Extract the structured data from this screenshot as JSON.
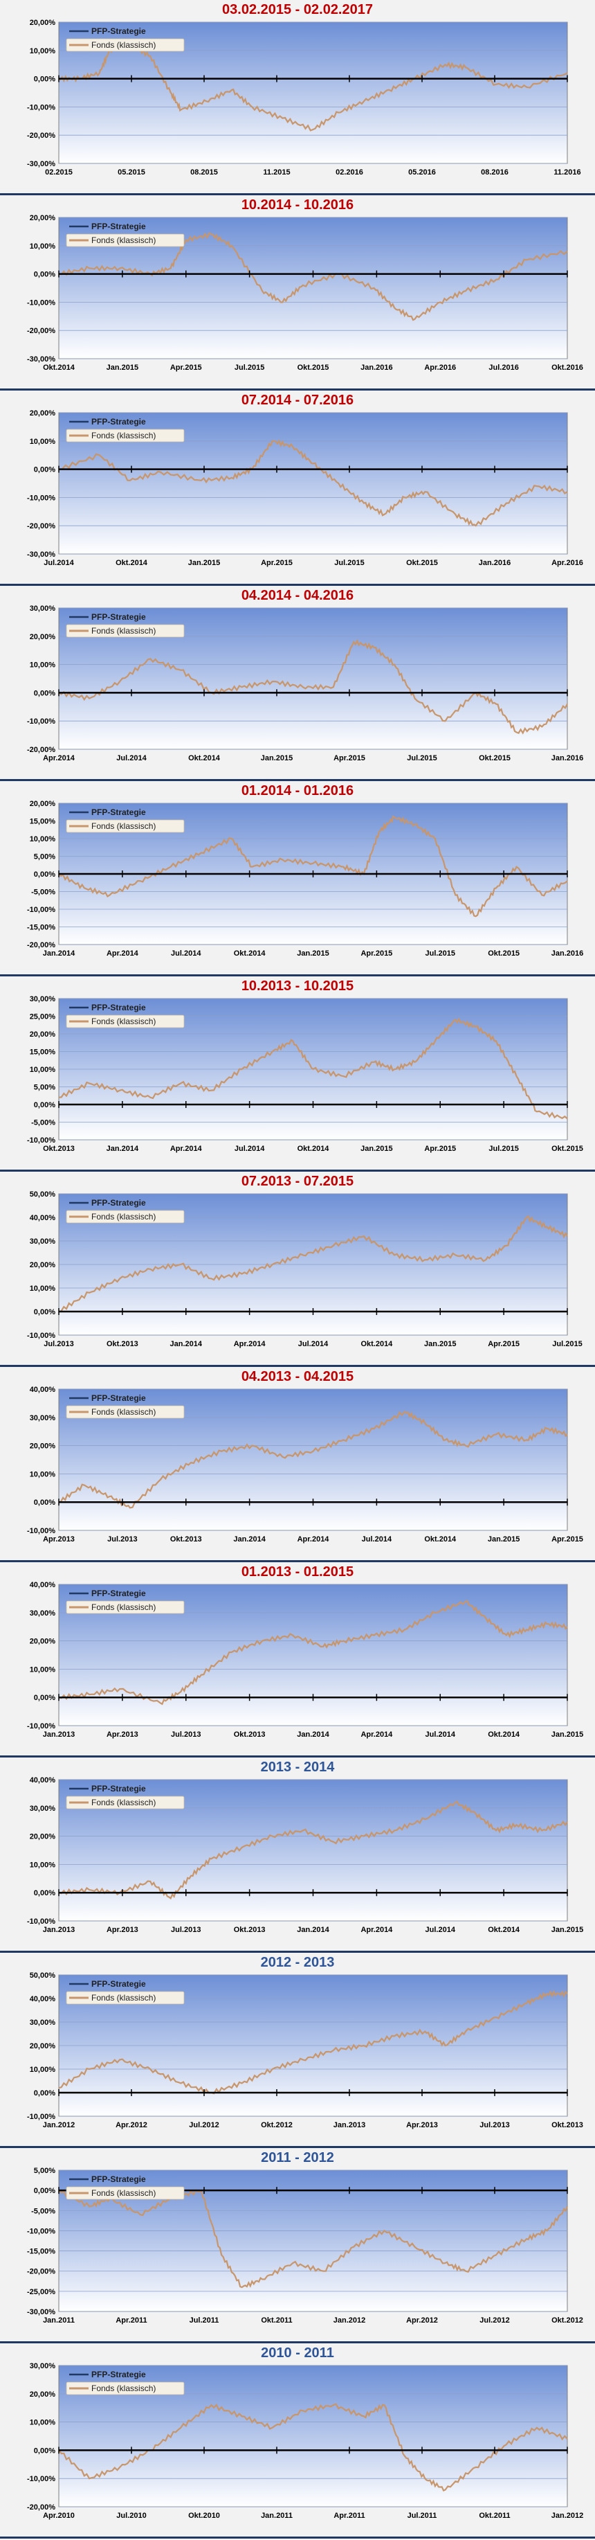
{
  "colors": {
    "plot_top": "#6d8fd6",
    "plot_bottom": "#ffffff",
    "fund": "#c8966a",
    "strategy": "#1f3864",
    "title_red": "#c00000",
    "title_blue": "#2e5597",
    "axis": "#000000",
    "grid": "#8aa0cc"
  },
  "legend": {
    "strategy": "PFP-Strategie",
    "fund": "Fonds (klassisch)"
  },
  "chart_data": [
    {
      "type": "line",
      "title": "03.02.2015 - 02.02.2017",
      "title_color": "red",
      "yticks": [
        "20,00%",
        "10,00%",
        "0,00%",
        "-10,00%",
        "-20,00%",
        "-30,00%"
      ],
      "ylim": [
        -30,
        20
      ],
      "xticks": [
        "02.2015",
        "05.2015",
        "08.2015",
        "11.2015",
        "02.2016",
        "05.2016",
        "08.2016",
        "11.2016"
      ],
      "series": [
        {
          "name": "Fonds (klassisch)",
          "x": [
            0,
            4,
            8,
            10,
            14,
            18,
            22,
            24,
            29,
            34,
            38,
            44,
            50,
            55,
            60,
            65,
            70,
            76,
            80,
            86,
            92,
            100
          ],
          "values": [
            0,
            0,
            2,
            10,
            12,
            8,
            -5,
            -11,
            -8,
            -4,
            -10,
            -14,
            -18,
            -12,
            -8,
            -4,
            0,
            5,
            4,
            -2,
            -3,
            2
          ]
        },
        {
          "name": "PFP-Strategie",
          "x": [
            0,
            100
          ],
          "values": [
            0,
            0
          ]
        }
      ]
    },
    {
      "type": "line",
      "title": "10.2014 - 10.2016",
      "title_color": "red",
      "yticks": [
        "20,00%",
        "10,00%",
        "0,00%",
        "-10,00%",
        "-20,00%",
        "-30,00%"
      ],
      "ylim": [
        -30,
        20
      ],
      "xticks": [
        "Okt.2014",
        "Jan.2015",
        "Apr.2015",
        "Jul.2015",
        "Okt.2015",
        "Jan.2016",
        "Apr.2016",
        "Jul.2016",
        "Okt.2016"
      ],
      "series": [
        {
          "name": "Fonds (klassisch)",
          "x": [
            0,
            6,
            12,
            18,
            22,
            25,
            30,
            34,
            40,
            44,
            48,
            55,
            62,
            66,
            70,
            75,
            80,
            86,
            92,
            100
          ],
          "values": [
            0,
            2,
            2,
            0,
            2,
            12,
            14,
            10,
            -6,
            -10,
            -4,
            0,
            -5,
            -12,
            -16,
            -10,
            -6,
            -2,
            5,
            8
          ]
        },
        {
          "name": "PFP-Strategie",
          "x": [
            0,
            100
          ],
          "values": [
            0,
            0
          ]
        }
      ]
    },
    {
      "type": "line",
      "title": "07.2014 - 07.2016",
      "title_color": "red",
      "yticks": [
        "20,00%",
        "10,00%",
        "0,00%",
        "-10,00%",
        "-20,00%",
        "-30,00%"
      ],
      "ylim": [
        -30,
        20
      ],
      "xticks": [
        "Jul.2014",
        "Okt.2014",
        "Jan.2015",
        "Apr.2015",
        "Jul.2015",
        "Okt.2015",
        "Jan.2016",
        "Apr.2016"
      ],
      "series": [
        {
          "name": "Fonds (klassisch)",
          "x": [
            0,
            8,
            14,
            20,
            28,
            34,
            38,
            42,
            46,
            50,
            55,
            60,
            64,
            68,
            72,
            78,
            82,
            88,
            94,
            100
          ],
          "values": [
            0,
            5,
            -4,
            -1,
            -4,
            -3,
            0,
            10,
            8,
            2,
            -5,
            -12,
            -16,
            -10,
            -8,
            -16,
            -20,
            -12,
            -6,
            -8
          ]
        },
        {
          "name": "PFP-Strategie",
          "x": [
            0,
            100
          ],
          "values": [
            0,
            0
          ]
        }
      ]
    },
    {
      "type": "line",
      "title": "04.2014 - 04.2016",
      "title_color": "red",
      "yticks": [
        "30,00%",
        "20,00%",
        "10,00%",
        "0,00%",
        "-10,00%",
        "-20,00%"
      ],
      "ylim": [
        -20,
        30
      ],
      "xticks": [
        "Apr.2014",
        "Jul.2014",
        "Okt.2014",
        "Jan.2015",
        "Apr.2015",
        "Jul.2015",
        "Okt.2015",
        "Jan.2016"
      ],
      "series": [
        {
          "name": "Fonds (klassisch)",
          "x": [
            0,
            6,
            12,
            18,
            24,
            30,
            36,
            42,
            48,
            54,
            58,
            62,
            66,
            70,
            76,
            82,
            86,
            90,
            95,
            100
          ],
          "values": [
            0,
            -2,
            4,
            12,
            8,
            0,
            2,
            4,
            2,
            2,
            18,
            16,
            10,
            -2,
            -10,
            0,
            -4,
            -14,
            -12,
            -4
          ]
        },
        {
          "name": "PFP-Strategie",
          "x": [
            0,
            100
          ],
          "values": [
            0,
            0
          ]
        }
      ]
    },
    {
      "type": "line",
      "title": "01.2014 - 01.2016",
      "title_color": "red",
      "yticks": [
        "20,00%",
        "15,00%",
        "10,00%",
        "5,00%",
        "0,00%",
        "-5,00%",
        "-10,00%",
        "-15,00%",
        "-20,00%"
      ],
      "ylim": [
        -20,
        20
      ],
      "xticks": [
        "Jan.2014",
        "Apr.2014",
        "Jul.2014",
        "Okt.2014",
        "Jan.2015",
        "Apr.2015",
        "Jul.2015",
        "Okt.2015",
        "Jan.2016"
      ],
      "series": [
        {
          "name": "Fonds (klassisch)",
          "x": [
            0,
            5,
            10,
            16,
            22,
            28,
            34,
            38,
            44,
            50,
            56,
            60,
            63,
            66,
            70,
            74,
            78,
            82,
            86,
            90,
            95,
            100
          ],
          "values": [
            0,
            -4,
            -6,
            -2,
            2,
            6,
            10,
            2,
            4,
            3,
            2,
            0,
            12,
            16,
            14,
            10,
            -6,
            -12,
            -4,
            2,
            -6,
            -2
          ]
        },
        {
          "name": "PFP-Strategie",
          "x": [
            0,
            100
          ],
          "values": [
            0,
            0
          ]
        }
      ]
    },
    {
      "type": "line",
      "title": "10.2013 - 10.2015",
      "title_color": "red",
      "yticks": [
        "30,00%",
        "25,00%",
        "20,00%",
        "15,00%",
        "10,00%",
        "5,00%",
        "0,00%",
        "-5,00%",
        "-10,00%"
      ],
      "ylim": [
        -10,
        30
      ],
      "xticks": [
        "Okt.2013",
        "Jan.2014",
        "Apr.2014",
        "Jul.2014",
        "Okt.2014",
        "Jan.2015",
        "Apr.2015",
        "Jul.2015",
        "Okt.2015"
      ],
      "series": [
        {
          "name": "Fonds (klassisch)",
          "x": [
            0,
            6,
            12,
            18,
            24,
            30,
            36,
            42,
            46,
            50,
            56,
            62,
            66,
            70,
            74,
            78,
            82,
            86,
            90,
            94,
            100
          ],
          "values": [
            2,
            6,
            4,
            2,
            6,
            4,
            10,
            15,
            18,
            10,
            8,
            12,
            10,
            12,
            18,
            24,
            22,
            18,
            8,
            -2,
            -4
          ]
        },
        {
          "name": "PFP-Strategie",
          "x": [
            0,
            100
          ],
          "values": [
            0,
            0
          ]
        }
      ]
    },
    {
      "type": "line",
      "title": "07.2013 - 07.2015",
      "title_color": "red",
      "yticks": [
        "50,00%",
        "40,00%",
        "30,00%",
        "20,00%",
        "10,00%",
        "0,00%",
        "-10,00%"
      ],
      "ylim": [
        -10,
        50
      ],
      "xticks": [
        "Jul.2013",
        "Okt.2013",
        "Jan.2014",
        "Apr.2014",
        "Jul.2014",
        "Okt.2014",
        "Jan.2015",
        "Apr.2015",
        "Jul.2015"
      ],
      "series": [
        {
          "name": "Fonds (klassisch)",
          "x": [
            0,
            6,
            12,
            18,
            24,
            30,
            36,
            42,
            48,
            54,
            60,
            66,
            72,
            78,
            84,
            88,
            92,
            96,
            100
          ],
          "values": [
            0,
            8,
            14,
            18,
            20,
            14,
            16,
            20,
            24,
            28,
            32,
            24,
            22,
            24,
            22,
            28,
            40,
            36,
            32
          ]
        },
        {
          "name": "PFP-Strategie",
          "x": [
            0,
            100
          ],
          "values": [
            0,
            0
          ]
        }
      ]
    },
    {
      "type": "line",
      "title": "04.2013 - 04.2015",
      "title_color": "red",
      "yticks": [
        "40,00%",
        "30,00%",
        "20,00%",
        "10,00%",
        "0,00%",
        "-10,00%"
      ],
      "ylim": [
        -10,
        40
      ],
      "xticks": [
        "Apr.2013",
        "Jul.2013",
        "Okt.2013",
        "Jan.2014",
        "Apr.2014",
        "Jul.2014",
        "Okt.2014",
        "Jan.2015",
        "Apr.2015"
      ],
      "series": [
        {
          "name": "Fonds (klassisch)",
          "x": [
            0,
            5,
            10,
            14,
            20,
            26,
            32,
            38,
            44,
            50,
            56,
            62,
            68,
            72,
            76,
            80,
            86,
            92,
            96,
            100
          ],
          "values": [
            0,
            6,
            2,
            -2,
            8,
            14,
            18,
            20,
            16,
            18,
            22,
            26,
            32,
            28,
            22,
            20,
            24,
            22,
            26,
            24
          ]
        },
        {
          "name": "PFP-Strategie",
          "x": [
            0,
            100
          ],
          "values": [
            0,
            0
          ]
        }
      ]
    },
    {
      "type": "line",
      "title": "01.2013 - 01.2015",
      "title_color": "red",
      "yticks": [
        "40,00%",
        "30,00%",
        "20,00%",
        "10,00%",
        "0,00%",
        "-10,00%"
      ],
      "ylim": [
        -10,
        40
      ],
      "xticks": [
        "Jan.2013",
        "Apr.2013",
        "Jul.2013",
        "Okt.2013",
        "Jan.2014",
        "Apr.2014",
        "Jul.2014",
        "Okt.2014",
        "Jan.2015"
      ],
      "series": [
        {
          "name": "Fonds (klassisch)",
          "x": [
            0,
            6,
            12,
            20,
            24,
            28,
            34,
            40,
            46,
            52,
            56,
            62,
            68,
            74,
            80,
            84,
            88,
            92,
            96,
            100
          ],
          "values": [
            0,
            1,
            3,
            -2,
            2,
            8,
            16,
            20,
            22,
            18,
            20,
            22,
            24,
            30,
            34,
            28,
            22,
            24,
            26,
            25
          ]
        },
        {
          "name": "PFP-Strategie",
          "x": [
            0,
            100
          ],
          "values": [
            0,
            0
          ]
        }
      ]
    },
    {
      "type": "line",
      "title": "2013 - 2014",
      "title_color": "blue",
      "yticks": [
        "40,00%",
        "30,00%",
        "20,00%",
        "10,00%",
        "0,00%",
        "-10,00%"
      ],
      "ylim": [
        -10,
        40
      ],
      "xticks": [
        "Jan.2013",
        "Apr.2013",
        "Jul.2013",
        "Okt.2013",
        "Jan.2014",
        "Apr.2014",
        "Jul.2014",
        "Okt.2014",
        "Jan.2015"
      ],
      "series": [
        {
          "name": "Fonds (klassisch)",
          "x": [
            0,
            6,
            12,
            18,
            22,
            26,
            30,
            36,
            42,
            48,
            54,
            60,
            66,
            72,
            78,
            82,
            86,
            90,
            95,
            100
          ],
          "values": [
            0,
            1,
            0,
            4,
            -2,
            6,
            12,
            16,
            20,
            22,
            18,
            20,
            22,
            26,
            32,
            28,
            22,
            24,
            22,
            25
          ]
        },
        {
          "name": "PFP-Strategie",
          "x": [
            0,
            100
          ],
          "values": [
            0,
            0
          ]
        }
      ]
    },
    {
      "type": "line",
      "title": "2012 - 2013",
      "title_color": "blue",
      "yticks": [
        "50,00%",
        "40,00%",
        "30,00%",
        "20,00%",
        "10,00%",
        "0,00%",
        "-10,00%"
      ],
      "ylim": [
        -10,
        50
      ],
      "xticks": [
        "Jan.2012",
        "Apr.2012",
        "Jul.2012",
        "Okt.2012",
        "Jan.2013",
        "Apr.2013",
        "Jul.2013",
        "Okt.2013"
      ],
      "series": [
        {
          "name": "Fonds (klassisch)",
          "x": [
            0,
            6,
            12,
            18,
            24,
            30,
            36,
            42,
            48,
            54,
            60,
            66,
            72,
            76,
            80,
            86,
            92,
            96,
            100
          ],
          "values": [
            2,
            10,
            14,
            10,
            4,
            0,
            4,
            10,
            14,
            18,
            20,
            24,
            26,
            20,
            26,
            32,
            38,
            42,
            42
          ]
        },
        {
          "name": "PFP-Strategie",
          "x": [
            0,
            100
          ],
          "values": [
            0,
            0
          ]
        }
      ]
    },
    {
      "type": "line",
      "title": "2011 - 2012",
      "title_color": "blue",
      "yticks": [
        "5,00%",
        "0,00%",
        "-5,00%",
        "-10,00%",
        "-15,00%",
        "-20,00%",
        "-25,00%",
        "-30,00%"
      ],
      "ylim": [
        -30,
        5
      ],
      "xticks": [
        "Jan.2011",
        "Apr.2011",
        "Jul.2011",
        "Okt.2011",
        "Jan.2012",
        "Apr.2012",
        "Jul.2012",
        "Okt.2012"
      ],
      "series": [
        {
          "name": "Fonds (klassisch)",
          "x": [
            0,
            6,
            10,
            16,
            22,
            28,
            32,
            36,
            40,
            46,
            52,
            58,
            64,
            70,
            76,
            80,
            86,
            92,
            96,
            100
          ],
          "values": [
            0,
            -4,
            -2,
            -6,
            -2,
            0,
            -16,
            -24,
            -22,
            -18,
            -20,
            -14,
            -10,
            -14,
            -18,
            -20,
            -16,
            -12,
            -10,
            -4
          ]
        },
        {
          "name": "PFP-Strategie",
          "x": [
            0,
            100
          ],
          "values": [
            0,
            0
          ]
        }
      ]
    },
    {
      "type": "line",
      "title": "2010 - 2011",
      "title_color": "blue",
      "yticks": [
        "30,00%",
        "20,00%",
        "10,00%",
        "0,00%",
        "-10,00%",
        "-20,00%"
      ],
      "ylim": [
        -20,
        30
      ],
      "xticks": [
        "Apr.2010",
        "Jul.2010",
        "Okt.2010",
        "Jan.2011",
        "Apr.2011",
        "Jul.2011",
        "Okt.2011",
        "Jan.2012"
      ],
      "series": [
        {
          "name": "Fonds (klassisch)",
          "x": [
            0,
            6,
            12,
            18,
            24,
            30,
            36,
            42,
            48,
            54,
            60,
            64,
            68,
            72,
            76,
            82,
            88,
            94,
            100
          ],
          "values": [
            0,
            -10,
            -6,
            0,
            8,
            16,
            12,
            8,
            14,
            16,
            12,
            16,
            -2,
            -10,
            -14,
            -6,
            2,
            8,
            4
          ]
        },
        {
          "name": "PFP-Strategie",
          "x": [
            0,
            100
          ],
          "values": [
            0,
            0
          ]
        }
      ]
    }
  ]
}
